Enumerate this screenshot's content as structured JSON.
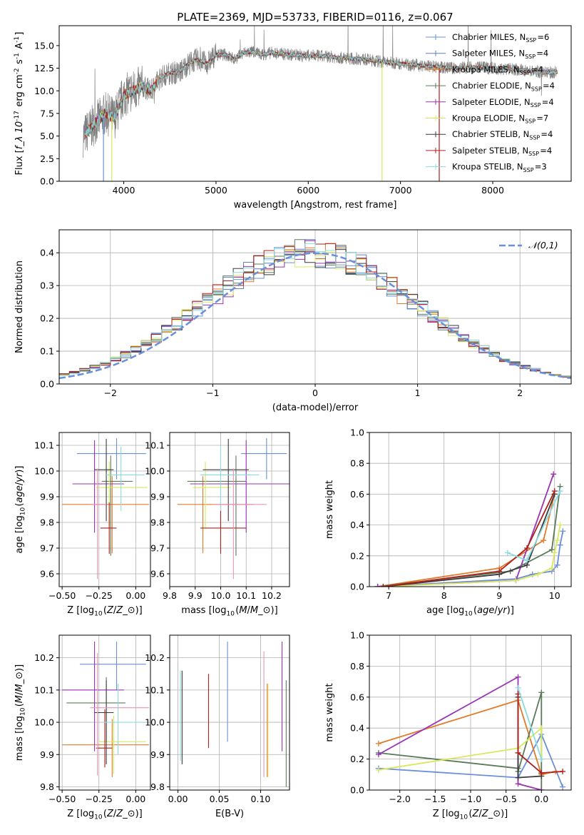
{
  "figure": {
    "title": "PLATE=2369, MJD=53733, FIBERID=0116, z=0.067"
  },
  "models": [
    {
      "label": "Chabrier MILES, N$_{SSP}$=6",
      "color": "#6a8fdc"
    },
    {
      "label": "Salpeter MILES, N$_{SSP}$=4",
      "color": "#5f7fb8"
    },
    {
      "label": "Kroupa MILES, N$_{SSP}$=4",
      "color": "#e07b2a"
    },
    {
      "label": "Chabrier ELODIE, N$_{SSP}$=4",
      "color": "#5a7a5a"
    },
    {
      "label": "Salpeter ELODIE, N$_{SSP}$=4",
      "color": "#9a34b4"
    },
    {
      "label": "Kroupa ELODIE, N$_{SSP}$=7",
      "color": "#d8e860"
    },
    {
      "label": "Chabrier STELIB, N$_{SSP}$=4",
      "color": "#3a3a3a"
    },
    {
      "label": "Salpeter STELIB, N$_{SSP}$=4",
      "color": "#b0201c"
    },
    {
      "label": "Kroupa STELIB, N$_{SSP}$=3",
      "color": "#8adce0"
    }
  ],
  "chart_data": [
    {
      "id": "spectrum",
      "type": "line",
      "xlabel": "wavelength [Angstrom, rest frame]",
      "ylabel": "Flux [$f_\\lambda 10^{-17}$ erg cm$^{-2}$ s$^{-1}$ A$^{-1}$]",
      "xlim": [
        3300,
        8850
      ],
      "ylim": [
        0,
        17.2
      ],
      "xticks": [
        4000,
        5000,
        6000,
        7000,
        8000
      ],
      "yticks": [
        0.0,
        2.5,
        5.0,
        7.5,
        10.0,
        12.5,
        15.0
      ],
      "grid": false,
      "legend": "right",
      "data_color": "#808080",
      "data": {
        "x": [
          3560,
          3700,
          3800,
          3900,
          4000,
          4100,
          4200,
          4300,
          4400,
          4500,
          4600,
          4700,
          4800,
          4900,
          5000,
          5100,
          5200,
          5300,
          5400,
          5500,
          5600,
          5800,
          6000,
          6200,
          6400,
          6600,
          6800,
          7000,
          7200,
          7400,
          7600,
          7800,
          8000,
          8200,
          8400,
          8600,
          8700
        ],
        "y": [
          5.0,
          6.5,
          7.5,
          7.0,
          9.5,
          10.0,
          10.5,
          10.0,
          11.5,
          12.0,
          12.0,
          13.0,
          13.5,
          13.0,
          14.0,
          14.0,
          13.5,
          14.2,
          14.3,
          14.0,
          14.2,
          14.0,
          13.9,
          13.8,
          13.6,
          13.5,
          13.2,
          13.0,
          12.8,
          12.6,
          12.5,
          12.6,
          12.5,
          12.4,
          12.2,
          12.0,
          12.1
        ]
      }
    },
    {
      "id": "residuals",
      "type": "line",
      "xlabel": "(data-model)/error",
      "ylabel": "Normed distribution",
      "xlim": [
        -2.5,
        2.5
      ],
      "ylim": [
        0,
        0.47
      ],
      "xticks": [
        -2,
        -1,
        0,
        1,
        2
      ],
      "yticks": [
        0.0,
        0.1,
        0.2,
        0.3,
        0.4
      ],
      "grid": true,
      "legend": "top-right",
      "normal_label": "$\\mathcal{N}(0,1)$",
      "normal_color": "#6a8fdc"
    },
    {
      "id": "age-vs-Z",
      "type": "scatter",
      "xlabel": "Z [log$_{10}$($Z/Z_\\odot$)]",
      "ylabel": "age  [log$_{10}$($age/yr$)]",
      "xlim": [
        -0.52,
        0.1
      ],
      "ylim": [
        9.55,
        10.15
      ],
      "xticks": [
        -0.5,
        -0.25,
        0.0
      ],
      "xtick_labels": [
        "−0.50",
        "−0.25",
        "0.00"
      ],
      "yticks": [
        9.6,
        9.7,
        9.8,
        9.9,
        10.0,
        10.1
      ],
      "grid": true,
      "points": [
        {
          "x": -0.13,
          "xerr": [
            0.27,
            0.2
          ],
          "y": 10.068,
          "yerr": [
            0.1,
            0.06
          ],
          "color": "#6a8fdc"
        },
        {
          "x": -0.16,
          "xerr": [
            0.34,
            0.25
          ],
          "y": 9.87,
          "yerr": [
            0.19,
            0.11
          ],
          "color": "#e07b2a"
        },
        {
          "x": -0.17,
          "xerr": [
            0.06,
            0.15
          ],
          "y": 9.96,
          "yerr": [
            0.29,
            0.1
          ],
          "color": "#5a7a5a"
        },
        {
          "x": -0.28,
          "xerr": [
            0.15,
            0.2
          ],
          "y": 9.95,
          "yerr": [
            0.19,
            0.17
          ],
          "color": "#9a34b4"
        },
        {
          "x": -0.18,
          "xerr": [
            0.09,
            0.26
          ],
          "y": 9.936,
          "yerr": [
            0.16,
            0.1
          ],
          "color": "#d8e860"
        },
        {
          "x": -0.2,
          "xerr": [
            0.08,
            0.05
          ],
          "y": 10.005,
          "yerr": [
            0.2,
            0.12
          ],
          "color": "#3a3a3a"
        },
        {
          "x": -0.18,
          "xerr": [
            0.06,
            0.05
          ],
          "y": 9.778,
          "yerr": [
            0.1,
            0.1
          ],
          "color": "#b0201c"
        },
        {
          "x": -0.1,
          "xerr": [
            0.1,
            0.16
          ],
          "y": 9.985,
          "yerr": [
            0.14,
            0.11
          ],
          "color": "#8adce0"
        },
        {
          "x": -0.26,
          "xerr": [
            0.05,
            0.06
          ],
          "y": 9.87,
          "yerr": [
            0.29,
            0.14
          ],
          "color": "#e895b8"
        }
      ]
    },
    {
      "id": "age-vs-mass",
      "type": "scatter",
      "xlabel": "mass [log$_{10}$($M/M_\\odot$)]",
      "ylabel": "",
      "xlim": [
        9.8,
        10.27
      ],
      "ylim": [
        9.55,
        10.15
      ],
      "xticks": [
        9.8,
        9.9,
        10.0,
        10.1,
        10.2
      ],
      "yticks": [
        9.6,
        9.7,
        9.8,
        9.9,
        10.0,
        10.1
      ],
      "grid": true,
      "points": [
        {
          "x": 10.18,
          "xerr": [
            0.1,
            0.08
          ],
          "y": 10.068,
          "yerr": [
            0.1,
            0.06
          ],
          "color": "#6a8fdc"
        },
        {
          "x": 9.93,
          "xerr": [
            0.1,
            0.2
          ],
          "y": 9.87,
          "yerr": [
            0.19,
            0.11
          ],
          "color": "#e07b2a"
        },
        {
          "x": 10.06,
          "xerr": [
            0.19,
            0.04
          ],
          "y": 9.96,
          "yerr": [
            0.29,
            0.1
          ],
          "color": "#5a7a5a"
        },
        {
          "x": 10.1,
          "xerr": [
            0.22,
            0.19
          ],
          "y": 9.95,
          "yerr": [
            0.19,
            0.17
          ],
          "color": "#9a34b4"
        },
        {
          "x": 9.94,
          "xerr": [
            0.05,
            0.1
          ],
          "y": 9.936,
          "yerr": [
            0.16,
            0.1
          ],
          "color": "#d8e860"
        },
        {
          "x": 10.03,
          "xerr": [
            0.1,
            0.08
          ],
          "y": 10.005,
          "yerr": [
            0.2,
            0.12
          ],
          "color": "#3a3a3a"
        },
        {
          "x": 10.0,
          "xerr": [
            0.08,
            0.1
          ],
          "y": 9.778,
          "yerr": [
            0.1,
            0.1
          ],
          "color": "#b0201c"
        },
        {
          "x": 10.0,
          "xerr": [
            0.08,
            0.15
          ],
          "y": 9.985,
          "yerr": [
            0.14,
            0.11
          ],
          "color": "#8adce0"
        },
        {
          "x": 10.05,
          "xerr": [
            0.08,
            0.13
          ],
          "y": 9.87,
          "yerr": [
            0.29,
            0.14
          ],
          "color": "#e895b8"
        }
      ]
    },
    {
      "id": "mass-weight-vs-age",
      "type": "line",
      "xlabel": "age  [log$_{10}$($age/yr$)]",
      "ylabel": "mass weight",
      "xlim": [
        6.65,
        10.3
      ],
      "ylim": [
        0,
        1.0
      ],
      "xticks": [
        7,
        8,
        9,
        10
      ],
      "yticks": [
        0.0,
        0.2,
        0.4,
        0.6,
        0.8,
        1.0
      ],
      "grid": true,
      "series": [
        {
          "color": "#6a8fdc",
          "x": [
            6.8,
            9.3,
            9.6,
            9.95,
            10.05,
            10.1,
            10.15
          ],
          "y": [
            0.0,
            0.05,
            0.08,
            0.1,
            0.14,
            0.27,
            0.36
          ]
        },
        {
          "color": "#e07b2a",
          "x": [
            6.8,
            9.0,
            9.8,
            10.0
          ],
          "y": [
            0.0,
            0.12,
            0.3,
            0.6
          ]
        },
        {
          "color": "#5a7a5a",
          "x": [
            6.8,
            9.2,
            9.95,
            10.1
          ],
          "y": [
            0.0,
            0.1,
            0.24,
            0.65
          ]
        },
        {
          "color": "#9a34b4",
          "x": [
            6.8,
            9.3,
            9.98
          ],
          "y": [
            0.0,
            0.04,
            0.73
          ]
        },
        {
          "color": "#d8e860",
          "x": [
            6.9,
            9.3,
            9.7,
            9.95,
            10.0,
            10.05,
            10.1
          ],
          "y": [
            0.0,
            0.04,
            0.08,
            0.12,
            0.22,
            0.3,
            0.4
          ]
        },
        {
          "color": "#3a3a3a",
          "x": [
            6.9,
            9.0,
            9.5,
            10.0
          ],
          "y": [
            0.0,
            0.08,
            0.14,
            0.6
          ]
        },
        {
          "color": "#b0201c",
          "x": [
            6.9,
            9.0,
            9.5,
            10.0
          ],
          "y": [
            0.0,
            0.1,
            0.25,
            0.62
          ]
        },
        {
          "color": "#8adce0",
          "x": [
            9.15,
            9.5,
            10.1
          ],
          "y": [
            0.22,
            0.17,
            0.62
          ]
        }
      ]
    },
    {
      "id": "mass-vs-Z",
      "type": "scatter",
      "xlabel": "Z [log$_{10}$($Z/Z_\\odot$)]",
      "ylabel": "mass [log$_{10}$($M/M_\\odot$)]",
      "xlim": [
        -0.52,
        0.1
      ],
      "ylim": [
        9.79,
        10.27
      ],
      "xticks": [
        -0.5,
        -0.25,
        0.0
      ],
      "xtick_labels": [
        "−0.50",
        "−0.25",
        "0.00"
      ],
      "yticks": [
        9.8,
        9.9,
        10.0,
        10.1,
        10.2
      ],
      "grid": true,
      "points": [
        {
          "x": -0.13,
          "xerr": [
            0.25,
            0.2
          ],
          "y": 10.18,
          "yerr": [
            0.08,
            0.07
          ],
          "color": "#6a8fdc"
        },
        {
          "x": -0.16,
          "xerr": [
            0.34,
            0.25
          ],
          "y": 9.93,
          "yerr": [
            0.1,
            0.08
          ],
          "color": "#e07b2a"
        },
        {
          "x": -0.2,
          "xerr": [
            0.27,
            0.13
          ],
          "y": 10.06,
          "yerr": [
            0.12,
            0.08
          ],
          "color": "#5a7a5a"
        },
        {
          "x": -0.28,
          "xerr": [
            0.22,
            0.2
          ],
          "y": 10.1,
          "yerr": [
            0.19,
            0.15
          ],
          "color": "#9a34b4"
        },
        {
          "x": -0.15,
          "xerr": [
            0.1,
            0.22
          ],
          "y": 9.94,
          "yerr": [
            0.1,
            0.08
          ],
          "color": "#d8e860"
        },
        {
          "x": -0.2,
          "xerr": [
            0.08,
            0.05
          ],
          "y": 10.03,
          "yerr": [
            0.16,
            0.1
          ],
          "color": "#3a3a3a"
        },
        {
          "x": -0.21,
          "xerr": [
            0.06,
            0.05
          ],
          "y": 9.92,
          "yerr": [
            0.06,
            0.12
          ],
          "color": "#b0201c"
        },
        {
          "x": -0.12,
          "xerr": [
            0.1,
            0.18
          ],
          "y": 10.0,
          "yerr": [
            0.1,
            0.12
          ],
          "color": "#8adce0"
        },
        {
          "x": -0.26,
          "xerr": [
            0.05,
            0.35
          ],
          "y": 10.045,
          "yerr": [
            0.21,
            0.17
          ],
          "color": "#e895b8"
        }
      ]
    },
    {
      "id": "mass-vs-ebv",
      "type": "scatter",
      "xlabel": "E(B-V)",
      "ylabel": "",
      "xlim": [
        -0.01,
        0.135
      ],
      "ylim": [
        9.79,
        10.27
      ],
      "xticks": [
        0.0,
        0.05,
        0.1
      ],
      "xtick_labels": [
        "0.00",
        "0.05",
        "0.10"
      ],
      "yticks": [
        9.8,
        9.9,
        10.0,
        10.1,
        10.2
      ],
      "grid": true,
      "points": [
        {
          "x": 0.06,
          "y": 10.09,
          "yerr": [
            0.15,
            0.16
          ],
          "color": "#6a8fdc"
        },
        {
          "x": 0.108,
          "y": 10.0,
          "yerr": [
            0.17,
            0.12
          ],
          "color": "#e07b2a"
        },
        {
          "x": 0.131,
          "y": 10.0,
          "yerr": [
            0.2,
            0.13
          ],
          "color": "#5a7a5a"
        },
        {
          "x": 0.126,
          "y": 10.08,
          "yerr": [
            0.17,
            0.17
          ],
          "color": "#9a34b4"
        },
        {
          "x": 0.109,
          "y": 10.0,
          "yerr": [
            0.17,
            0.12
          ],
          "color": "#d8e860"
        },
        {
          "x": 0.005,
          "y": 10.01,
          "yerr": [
            0.14,
            0.15
          ],
          "color": "#3a3a3a"
        },
        {
          "x": 0.037,
          "y": 10.03,
          "yerr": [
            0.11,
            0.12
          ],
          "color": "#b0201c"
        },
        {
          "x": 0.003,
          "y": 10.05,
          "yerr": [
            0.17,
            0.11
          ],
          "color": "#8adce0"
        },
        {
          "x": 0.104,
          "y": 10.06,
          "yerr": [
            0.23,
            0.16
          ],
          "color": "#e895b8"
        }
      ]
    },
    {
      "id": "mass-weight-vs-Z",
      "type": "line",
      "xlabel": "Z [log$_{10}$($Z/Z_\\odot$)]",
      "ylabel": "mass weight",
      "xlim": [
        -2.43,
        0.42
      ],
      "ylim": [
        0,
        1.0
      ],
      "xticks": [
        -2.0,
        -1.5,
        -1.0,
        -0.5,
        0.0
      ],
      "xtick_labels": [
        "−2.0",
        "−1.5",
        "−1.0",
        "−0.5",
        "0.0"
      ],
      "yticks": [
        0.0,
        0.2,
        0.4,
        0.6,
        0.8,
        1.0
      ],
      "grid": true,
      "series": [
        {
          "color": "#6a8fdc",
          "x": [
            -2.3,
            -0.33,
            0.0,
            0.3
          ],
          "y": [
            0.14,
            0.08,
            0.36,
            0.02
          ]
        },
        {
          "color": "#e07b2a",
          "x": [
            -2.3,
            -0.33,
            0.0,
            0.2
          ],
          "y": [
            0.3,
            0.58,
            0.1,
            0.12
          ]
        },
        {
          "color": "#5a7a5a",
          "x": [
            -2.3,
            -0.33,
            -0.33,
            0.0,
            0.0
          ],
          "y": [
            0.24,
            0.14,
            0.12,
            0.63,
            0.0
          ]
        },
        {
          "color": "#9a34b4",
          "x": [
            -2.3,
            -0.33,
            -0.33,
            0.0
          ],
          "y": [
            0.23,
            0.73,
            0.04,
            0.0
          ]
        },
        {
          "color": "#d8e860",
          "x": [
            -2.3,
            -0.33,
            0.0,
            0.0
          ],
          "y": [
            0.13,
            0.27,
            0.4,
            0.2
          ]
        },
        {
          "color": "#3a3a3a",
          "x": [
            -0.33,
            -0.33,
            0.0,
            0.0
          ],
          "y": [
            0.6,
            0.08,
            0.09,
            0.11
          ]
        },
        {
          "color": "#b0201c",
          "x": [
            -0.33,
            -0.33,
            0.0,
            0.3
          ],
          "y": [
            0.62,
            0.24,
            0.11,
            0.12
          ]
        },
        {
          "color": "#8adce0",
          "x": [
            -0.33,
            0.0
          ],
          "y": [
            0.66,
            0.2
          ]
        }
      ]
    }
  ]
}
